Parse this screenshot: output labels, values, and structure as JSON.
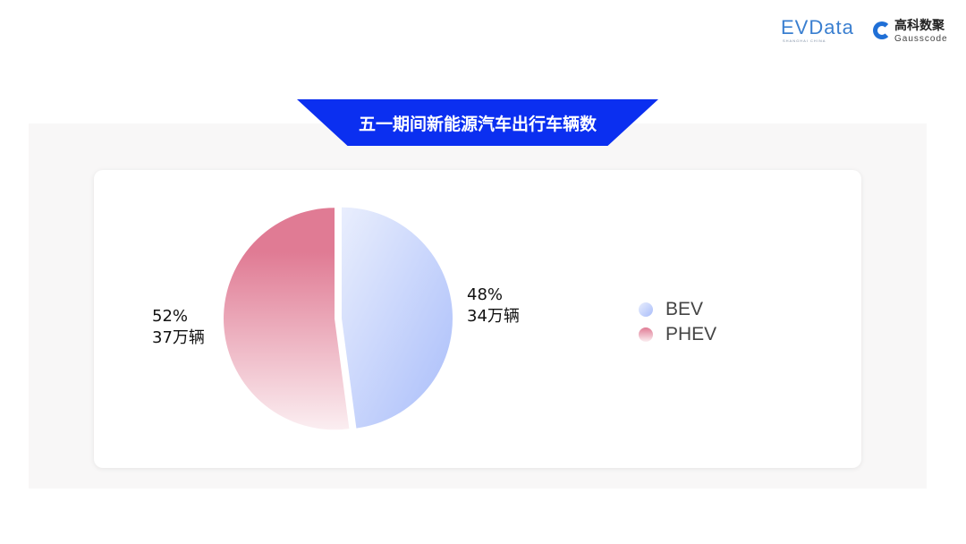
{
  "logos": {
    "evdata": "EVData",
    "evdata_sub": "SHANGHAI CHINA",
    "gauss_cn": "高科数聚",
    "gauss_en": "Gausscode"
  },
  "title": "五一期间新能源汽车出行车辆数",
  "chart_data": {
    "type": "pie",
    "title": "五一期间新能源汽车出行车辆数",
    "categories": [
      "BEV",
      "PHEV"
    ],
    "values": [
      34,
      37
    ],
    "unit": "万辆",
    "percent": [
      48,
      52
    ],
    "data_labels": [
      {
        "pct": "48%",
        "value": "34万辆"
      },
      {
        "pct": "52%",
        "value": "37万辆"
      }
    ],
    "colors": [
      "#b8c8fb",
      "#e07b94"
    ],
    "legend": "right"
  }
}
